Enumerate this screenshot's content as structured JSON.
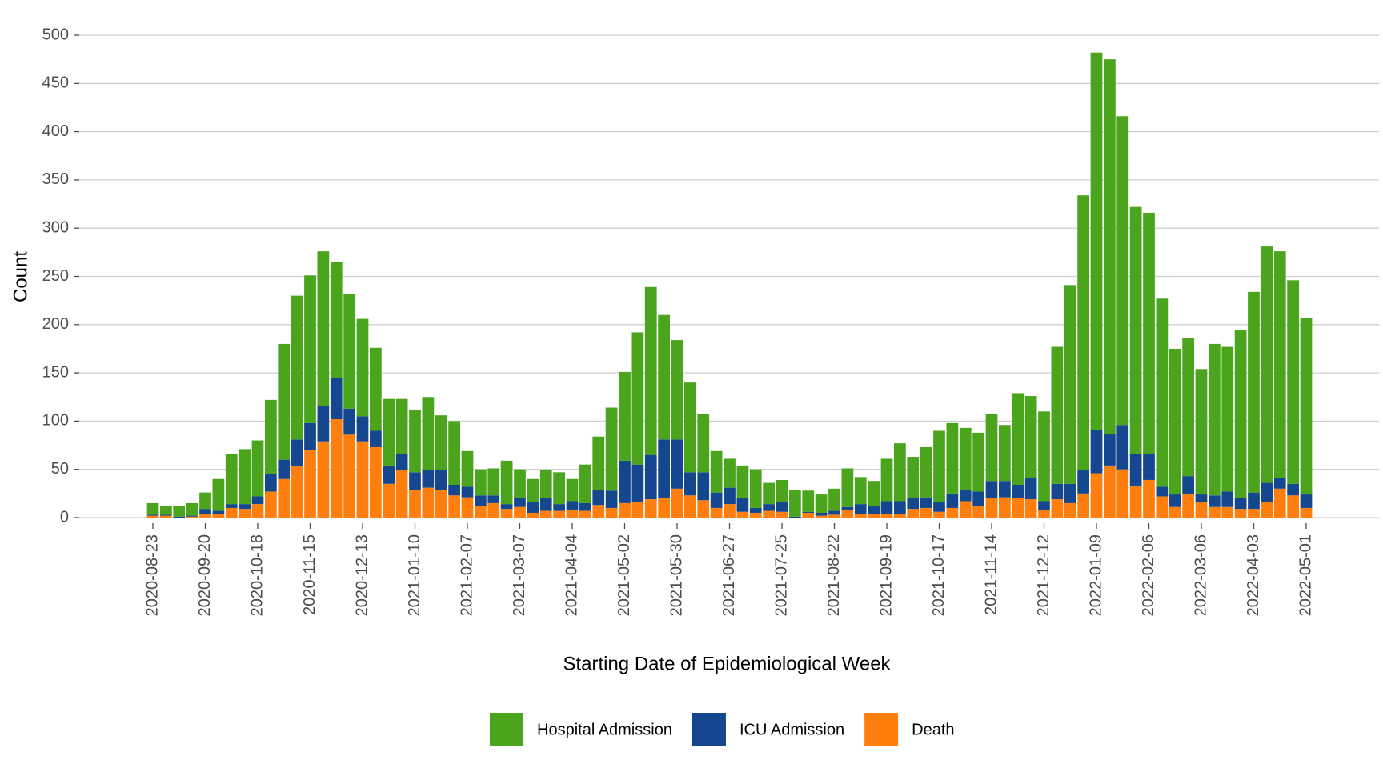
{
  "chart_data": {
    "type": "stacked_bar",
    "x_label": "Starting Date of Epidemiological Week",
    "y_label": "Count",
    "categories": [
      "2020-08-23",
      null,
      null,
      null,
      "2020-09-20",
      null,
      null,
      null,
      "2020-10-18",
      null,
      null,
      null,
      "2020-11-15",
      null,
      null,
      null,
      "2020-12-13",
      null,
      null,
      null,
      "2021-01-10",
      null,
      null,
      null,
      "2021-02-07",
      null,
      null,
      null,
      "2021-03-07",
      null,
      null,
      null,
      "2021-04-04",
      null,
      null,
      null,
      "2021-05-02",
      null,
      null,
      null,
      "2021-05-30",
      null,
      null,
      null,
      "2021-06-27",
      null,
      null,
      null,
      "2021-07-25",
      null,
      null,
      null,
      "2021-08-22",
      null,
      null,
      null,
      "2021-09-19",
      null,
      null,
      null,
      "2021-10-17",
      null,
      null,
      null,
      "2021-11-14",
      null,
      null,
      null,
      "2021-12-12",
      null,
      null,
      null,
      "2022-01-09",
      null,
      null,
      null,
      "2022-02-06",
      null,
      null,
      null,
      "2022-03-06",
      null,
      null,
      null,
      "2022-04-03",
      null,
      null,
      null,
      "2022-05-01"
    ],
    "series": [
      {
        "name": "Hospital Admission",
        "color": "#4aa51c",
        "values": [
          12,
          9,
          11,
          13,
          17,
          33,
          52,
          57,
          58,
          77,
          120,
          149,
          153,
          160,
          120,
          119,
          101,
          86,
          69,
          57,
          65,
          76,
          57,
          66,
          37,
          27,
          28,
          45,
          30,
          24,
          29,
          33,
          23,
          40,
          55,
          86,
          92,
          137,
          174,
          129,
          103,
          93,
          60,
          43,
          30,
          34,
          40,
          22,
          23,
          28,
          22,
          19,
          23,
          40,
          28,
          26,
          44,
          60,
          43,
          52,
          74,
          73,
          64,
          61,
          69,
          58,
          95,
          85,
          93,
          142,
          206,
          285,
          391,
          388,
          320,
          256,
          250,
          195,
          151,
          143,
          130,
          157,
          150,
          174,
          208,
          245,
          235,
          211,
          183
        ]
      },
      {
        "name": "ICU Admission",
        "color": "#15478e",
        "values": [
          1,
          1,
          1,
          1,
          5,
          3,
          4,
          5,
          8,
          18,
          20,
          28,
          28,
          37,
          43,
          27,
          26,
          17,
          19,
          17,
          18,
          18,
          20,
          11,
          11,
          11,
          8,
          5,
          9,
          11,
          13,
          7,
          9,
          8,
          16,
          18,
          44,
          39,
          46,
          61,
          51,
          24,
          29,
          16,
          17,
          14,
          5,
          7,
          10,
          1,
          1,
          3,
          4,
          3,
          10,
          8,
          13,
          13,
          11,
          11,
          10,
          15,
          12,
          15,
          18,
          17,
          14,
          22,
          9,
          16,
          20,
          24,
          45,
          33,
          46,
          33,
          27,
          10,
          13,
          19,
          8,
          12,
          16,
          11,
          17,
          20,
          11,
          12,
          14
        ]
      },
      {
        "name": "Death",
        "color": "#ff7f0e",
        "values": [
          2,
          2,
          0,
          1,
          4,
          4,
          10,
          9,
          14,
          27,
          40,
          53,
          70,
          79,
          102,
          86,
          79,
          73,
          35,
          49,
          29,
          31,
          29,
          23,
          21,
          12,
          15,
          9,
          11,
          5,
          7,
          7,
          8,
          7,
          13,
          10,
          15,
          16,
          19,
          20,
          30,
          23,
          18,
          10,
          14,
          6,
          5,
          7,
          6,
          0,
          5,
          2,
          3,
          8,
          4,
          4,
          4,
          4,
          9,
          10,
          6,
          10,
          17,
          12,
          20,
          21,
          20,
          19,
          8,
          19,
          15,
          25,
          46,
          54,
          50,
          33,
          39,
          22,
          11,
          24,
          16,
          11,
          11,
          9,
          9,
          16,
          30,
          23,
          10
        ]
      }
    ],
    "ylim": [
      0,
      500
    ],
    "yticks": [
      0,
      50,
      100,
      150,
      200,
      250,
      300,
      350,
      400,
      450,
      500
    ],
    "grid": true,
    "legend": "bottom"
  }
}
